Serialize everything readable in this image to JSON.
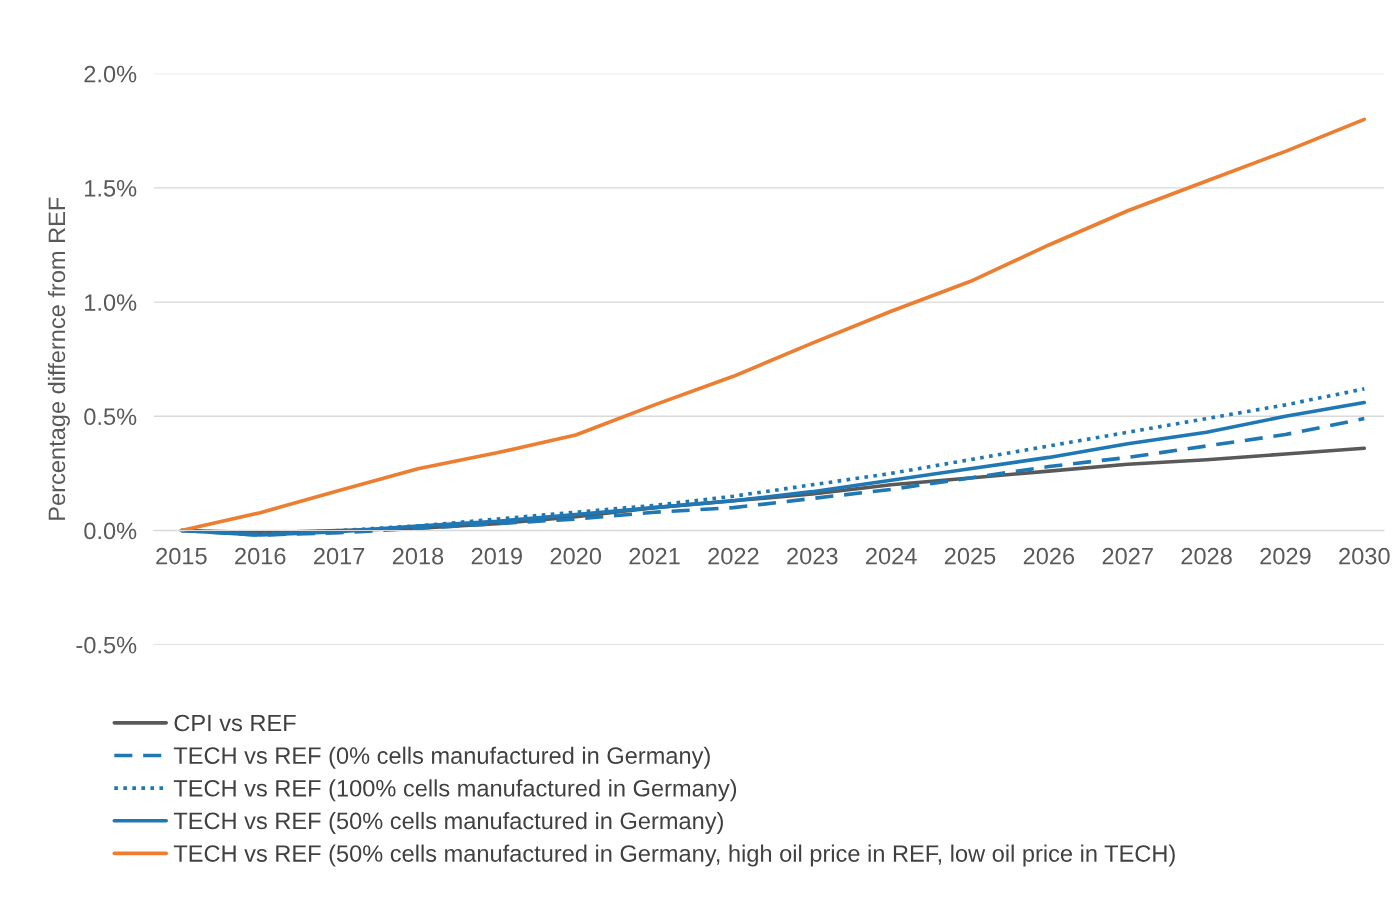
{
  "chart_data": {
    "type": "line",
    "ylabel": "Percentage differnce from REF",
    "categories": [
      "2015",
      "2016",
      "2017",
      "2018",
      "2019",
      "2020",
      "2021",
      "2022",
      "2023",
      "2024",
      "2025",
      "2026",
      "2027",
      "2028",
      "2029",
      "2030"
    ],
    "series": [
      {
        "name": "CPI vs REF",
        "color": "#595959",
        "line_style": "solid",
        "values": [
          0,
          -0.01,
          0,
          0.01,
          0.03,
          0.06,
          0.1,
          0.13,
          0.16,
          0.2,
          0.23,
          0.26,
          0.29,
          0.31,
          0.335,
          0.36
        ]
      },
      {
        "name": "TECH vs REF (0% cells manufactured in Germany)",
        "color": "#1f77b4",
        "line_style": "dashed",
        "values": [
          0,
          -0.02,
          -0.01,
          0.01,
          0.03,
          0.05,
          0.08,
          0.1,
          0.14,
          0.18,
          0.23,
          0.28,
          0.32,
          0.37,
          0.42,
          0.49
        ]
      },
      {
        "name": "TECH vs REF (100% cells manufactured in Germany)",
        "color": "#1f77b4",
        "line_style": "dotted",
        "values": [
          0,
          -0.015,
          0,
          0.02,
          0.05,
          0.08,
          0.11,
          0.15,
          0.2,
          0.25,
          0.31,
          0.37,
          0.43,
          0.49,
          0.55,
          0.62
        ]
      },
      {
        "name": "TECH vs REF (50% cells manufactured in Germany)",
        "color": "#1f77b4",
        "line_style": "solid",
        "values": [
          0,
          -0.02,
          -0.005,
          0.02,
          0.04,
          0.07,
          0.1,
          0.13,
          0.17,
          0.22,
          0.27,
          0.32,
          0.38,
          0.43,
          0.5,
          0.56
        ]
      },
      {
        "name": "TECH vs REF (50% cells manufactured in Germany, high oil price in REF, low oil price in TECH)",
        "color": "#ed7d31",
        "line_style": "solid",
        "values": [
          0,
          0.078,
          0.175,
          0.27,
          0.34,
          0.418,
          0.55,
          0.675,
          0.82,
          0.96,
          1.09,
          1.25,
          1.4,
          1.53,
          1.66,
          1.8
        ]
      }
    ],
    "ylim": [
      -0.5,
      2.0
    ],
    "yticks": [
      {
        "value": -0.5,
        "label": "-0.5%"
      },
      {
        "value": 0,
        "label": "0.0%"
      },
      {
        "value": 0.5,
        "label": "0.5%"
      },
      {
        "value": 1.0,
        "label": "1.0%"
      },
      {
        "value": 1.5,
        "label": "1.5%"
      },
      {
        "value": 2.0,
        "label": "2.0%"
      }
    ],
    "grid": "y",
    "legend": "bottom",
    "marker": "none"
  }
}
